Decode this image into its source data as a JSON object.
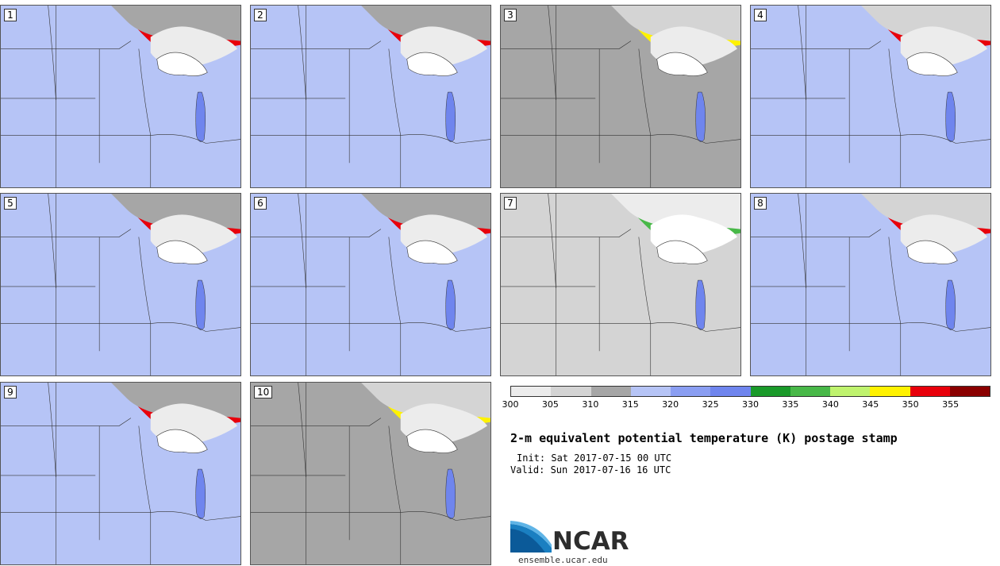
{
  "panels": [
    {
      "label": "1",
      "theme": "warm"
    },
    {
      "label": "2",
      "theme": "mid"
    },
    {
      "label": "3",
      "theme": "cool"
    },
    {
      "label": "4",
      "theme": "hot"
    },
    {
      "label": "5",
      "theme": "warm"
    },
    {
      "label": "6",
      "theme": "mid"
    },
    {
      "label": "7",
      "theme": "cold"
    },
    {
      "label": "8",
      "theme": "hot"
    },
    {
      "label": "9",
      "theme": "warm"
    },
    {
      "label": "10",
      "theme": "cool"
    }
  ],
  "colorbar": {
    "colors": [
      "#ececec",
      "#d4d4d4",
      "#a6a6a6",
      "#b6c4f6",
      "#8a9ef2",
      "#6f85ee",
      "#1a9a2a",
      "#48b848",
      "#bff36e",
      "#fff200",
      "#e8000b",
      "#8a0000"
    ],
    "ticks": [
      "300",
      "305",
      "310",
      "315",
      "320",
      "325",
      "330",
      "335",
      "340",
      "345",
      "350",
      "355"
    ]
  },
  "title": "2-m equivalent potential temperature (K) postage stamp",
  "init": "Init: Sat 2017-07-15 00 UTC",
  "valid": "Valid: Sun 2017-07-16 16 UTC",
  "logo": {
    "text": "NCAR",
    "site": "ensemble.ucar.edu"
  }
}
